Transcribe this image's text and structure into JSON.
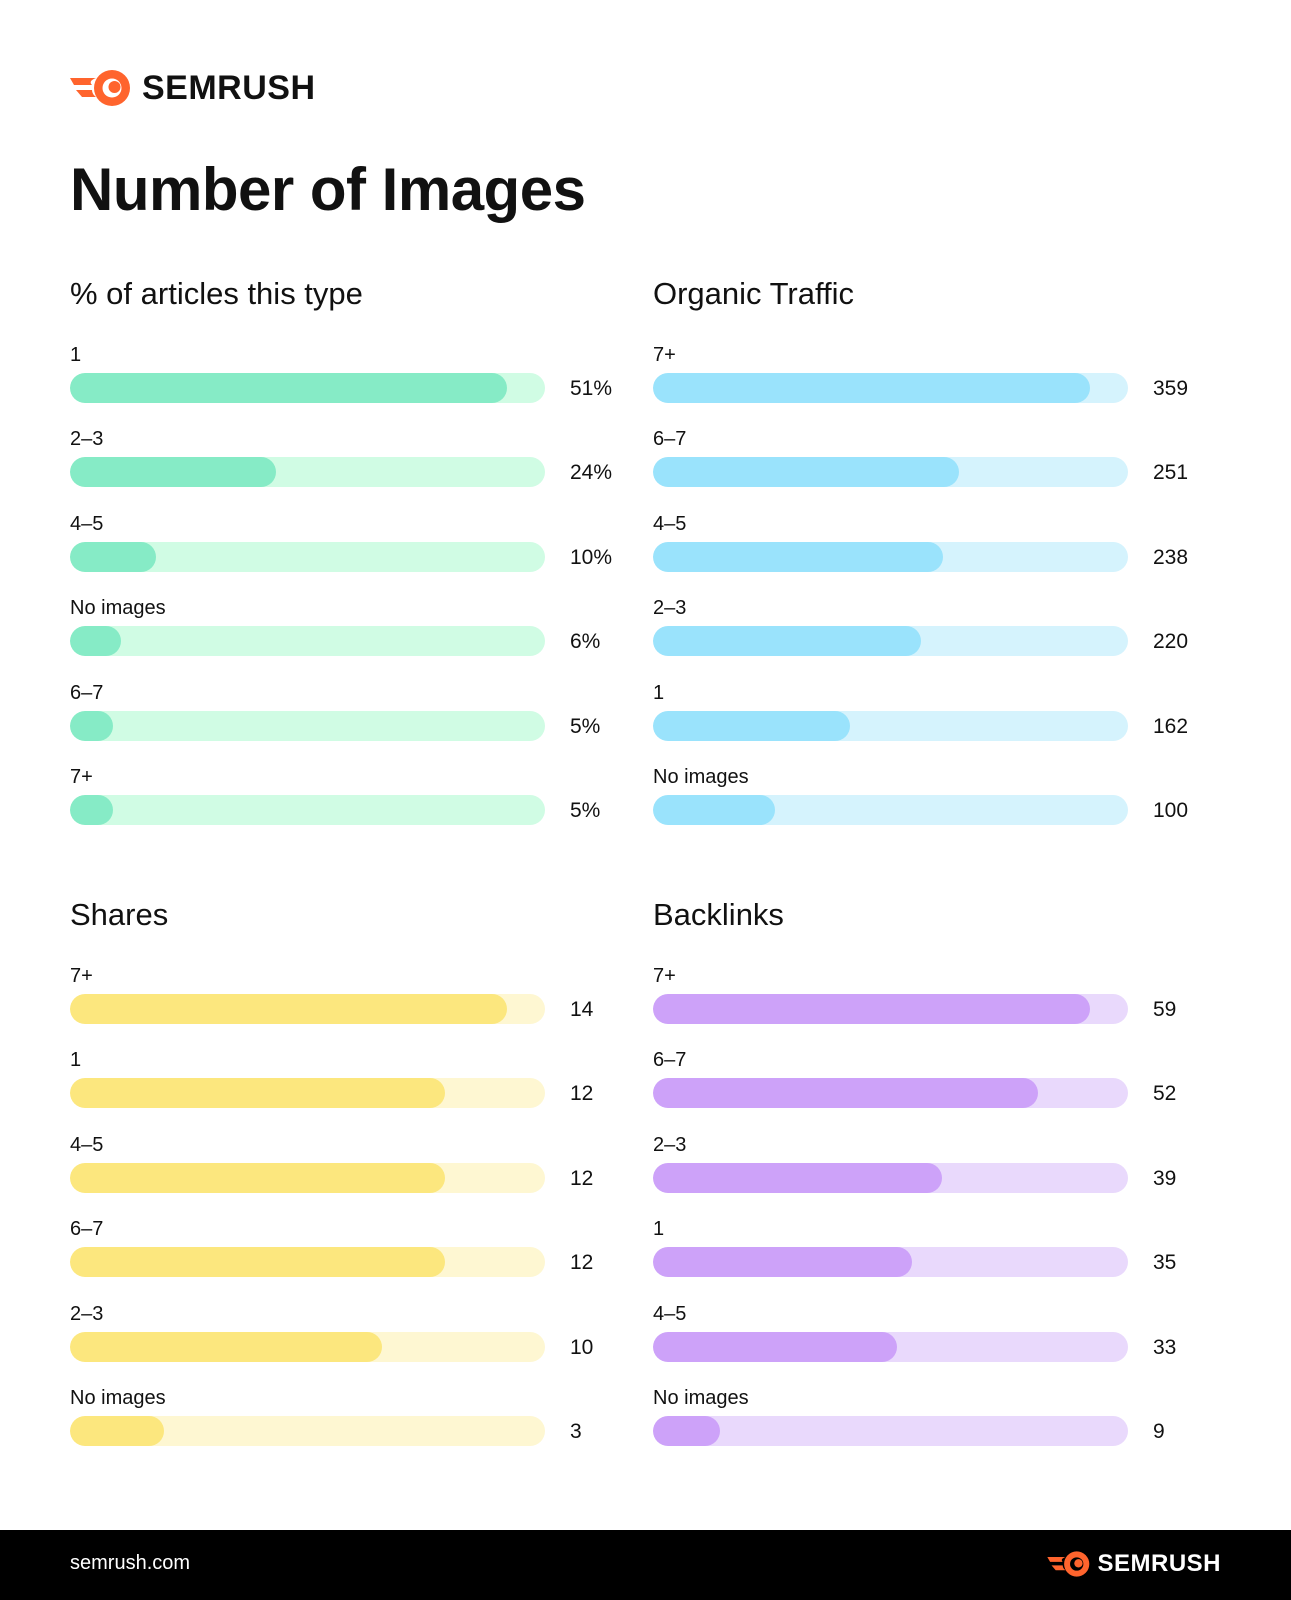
{
  "brand": {
    "name": "SEMRUSH",
    "accent": "#FF642D"
  },
  "title": "Number of Images",
  "footer": {
    "url": "semrush.com"
  },
  "chart_data": [
    {
      "type": "bar",
      "orientation": "horizontal",
      "title": "% of articles this type",
      "categories": [
        "1",
        "2–3",
        "4–5",
        "No images",
        "6–7",
        "7+"
      ],
      "values": [
        51,
        24,
        10,
        6,
        5,
        5
      ],
      "value_labels": [
        "51%",
        "24%",
        "10%",
        "6%",
        "5%",
        "5%"
      ],
      "unit": "%",
      "colors": {
        "fill": "#86EBC6",
        "track": "#D0FCE4"
      }
    },
    {
      "type": "bar",
      "orientation": "horizontal",
      "title": "Organic Traffic",
      "categories": [
        "7+",
        "6–7",
        "4–5",
        "2–3",
        "1",
        "No images"
      ],
      "values": [
        359,
        251,
        238,
        220,
        162,
        100
      ],
      "value_labels": [
        "359",
        "251",
        "238",
        "220",
        "162",
        "100"
      ],
      "colors": {
        "fill": "#9AE3FC",
        "track": "#D5F3FD"
      }
    },
    {
      "type": "bar",
      "orientation": "horizontal",
      "title": "Shares",
      "categories": [
        "7+",
        "1",
        "4–5",
        "6–7",
        "2–3",
        "No images"
      ],
      "values": [
        14,
        12,
        12,
        12,
        10,
        3
      ],
      "value_labels": [
        "14",
        "12",
        "12",
        "12",
        "10",
        "3"
      ],
      "colors": {
        "fill": "#FCE77E",
        "track": "#FEF7D2"
      }
    },
    {
      "type": "bar",
      "orientation": "horizontal",
      "title": "Backlinks",
      "categories": [
        "7+",
        "6–7",
        "2–3",
        "1",
        "4–5",
        "No images"
      ],
      "values": [
        59,
        52,
        39,
        35,
        33,
        9
      ],
      "value_labels": [
        "59",
        "52",
        "39",
        "35",
        "33",
        "9"
      ],
      "colors": {
        "fill": "#CDA2F9",
        "track": "#E9D9FC"
      }
    }
  ]
}
